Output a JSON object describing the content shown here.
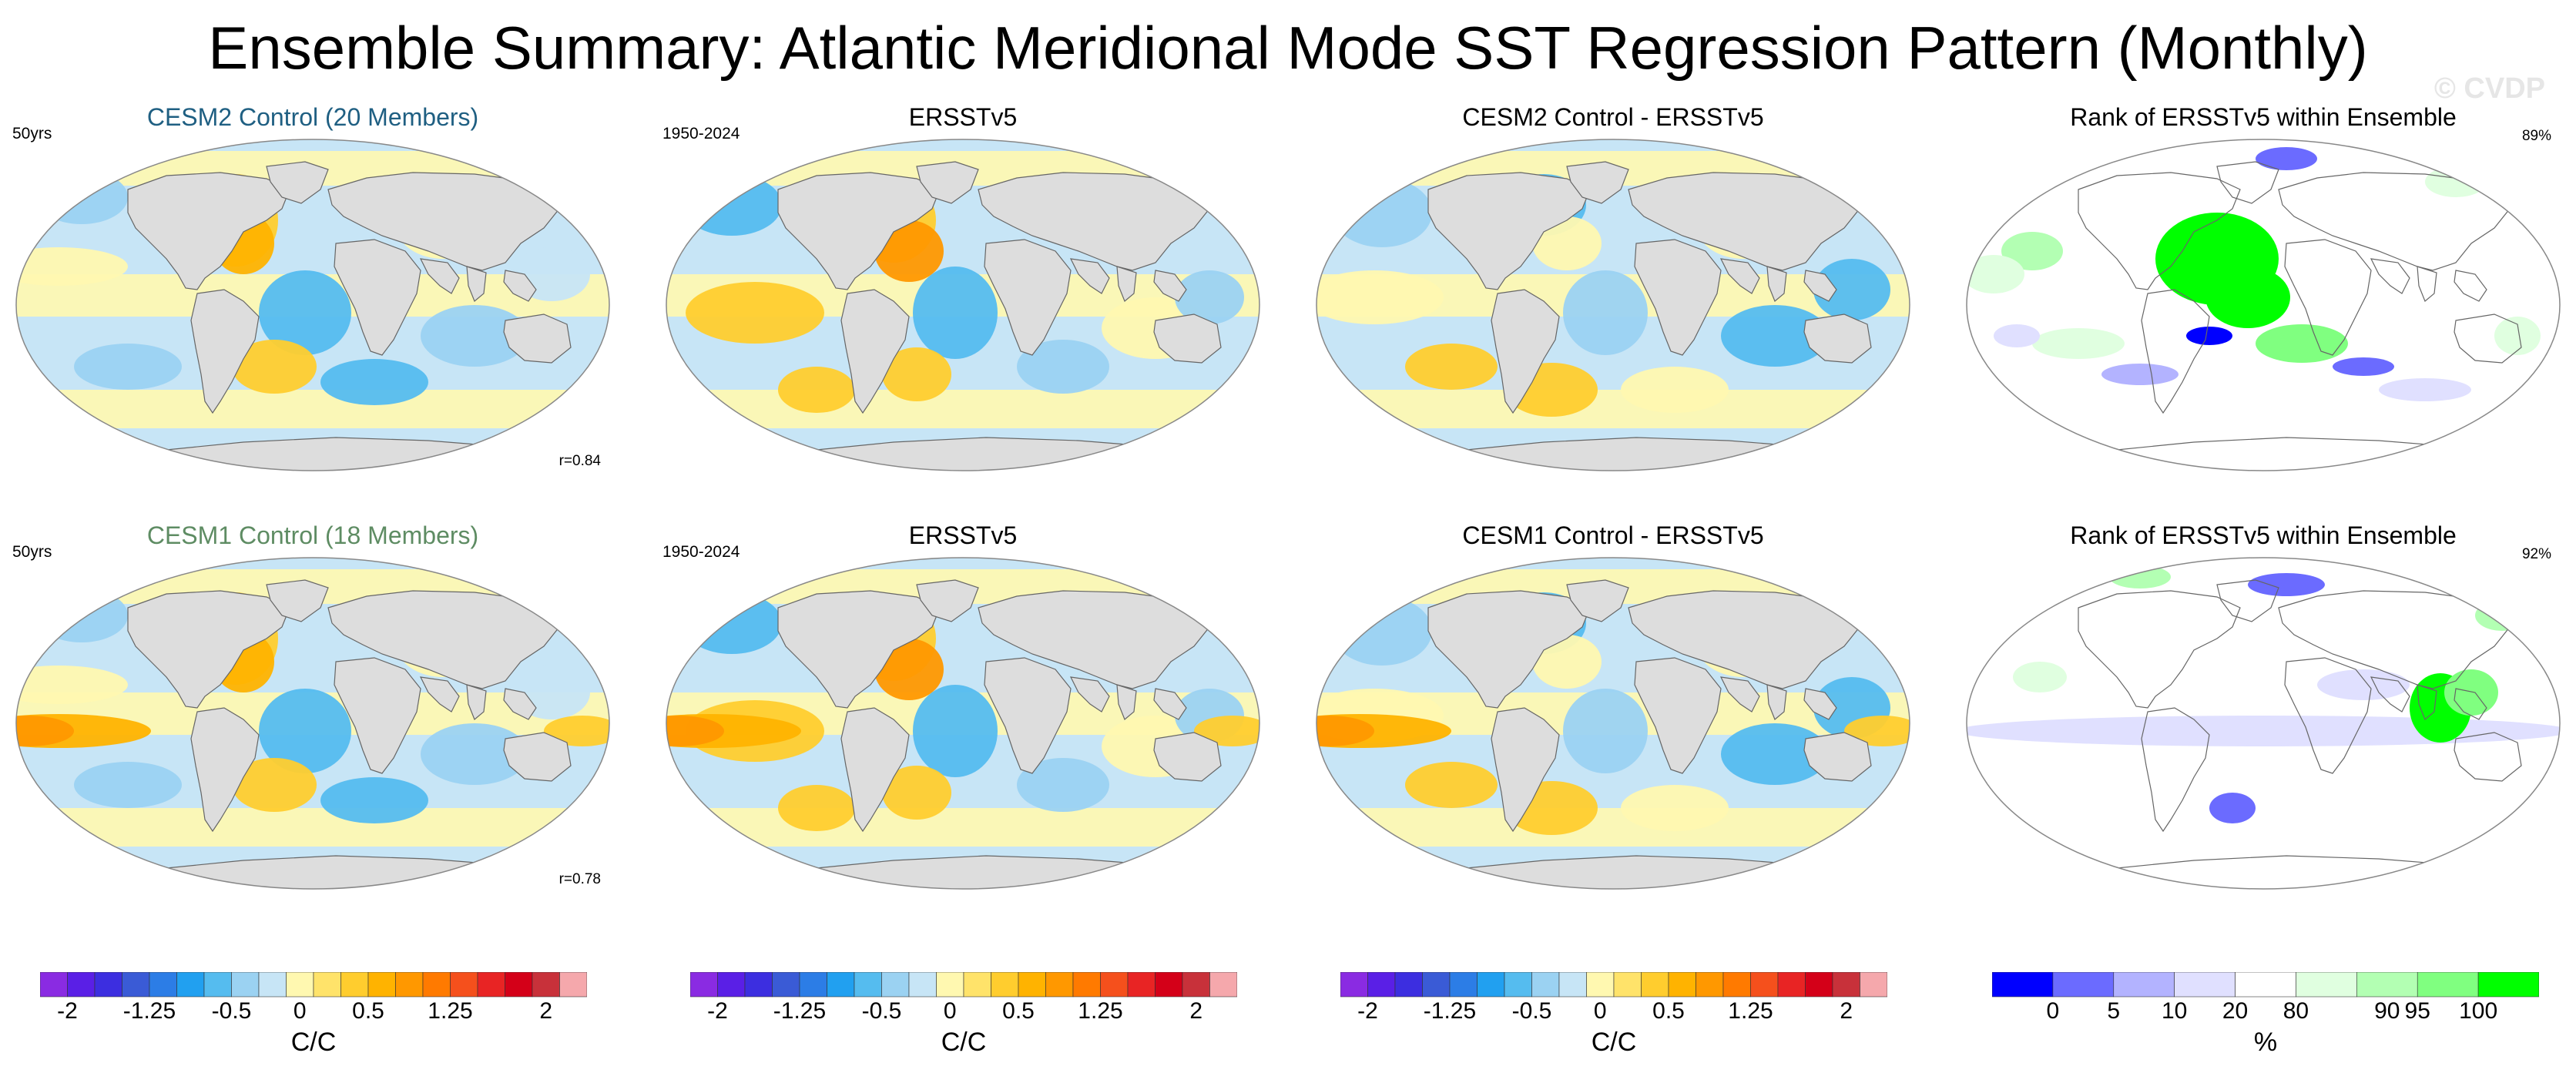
{
  "title": "Ensemble Summary: Atlantic Meridional Mode SST Regression Pattern (Monthly)",
  "watermark": "© CVDP",
  "rows": [
    {
      "model_title": "CESM2 Control (20 Members)",
      "model_color": "#1f5f82",
      "model_years": "50yrs",
      "model_corr": "r=0.84",
      "obs_title": "ERSSTv5",
      "obs_years": "1950-2024",
      "diff_title": "CESM2 Control - ERSSTv5",
      "rank_title": "Rank of ERSSTv5 within Ensemble",
      "rank_pct": "89%"
    },
    {
      "model_title": "CESM1 Control (18 Members)",
      "model_color": "#5e8c63",
      "model_years": "50yrs",
      "model_corr": "r=0.78",
      "obs_title": "ERSSTv5",
      "obs_years": "1950-2024",
      "diff_title": "CESM1 Control - ERSSTv5",
      "rank_title": "Rank of ERSSTv5 within Ensemble",
      "rank_pct": "92%"
    }
  ],
  "colorbar_sst": {
    "colors": [
      "#8a2be2",
      "#5a1fe6",
      "#3c2ee0",
      "#3a5bd6",
      "#2c7de6",
      "#21a0f0",
      "#55bcef",
      "#9bd2f2",
      "#c7e5f6",
      "#fff8b0",
      "#ffe36a",
      "#ffcd2e",
      "#ffb300",
      "#ff9800",
      "#ff7a00",
      "#f5501c",
      "#e82424",
      "#d40018",
      "#c8313a",
      "#f5a8ac"
    ],
    "labels": [
      "-2",
      "-1.25",
      "-0.5",
      "0",
      "0.5",
      "1.25",
      "2"
    ],
    "unit": "C/C"
  },
  "colorbar_rank": {
    "colors": [
      "#0000ff",
      "#6b6bff",
      "#b3b3ff",
      "#e0e0ff",
      "#ffffff",
      "#e0ffe0",
      "#b3ffb3",
      "#80ff80",
      "#00ff00"
    ],
    "labels": [
      "0",
      "5",
      "10",
      "20",
      "80",
      "90",
      "95",
      "100"
    ],
    "unit": "%"
  }
}
